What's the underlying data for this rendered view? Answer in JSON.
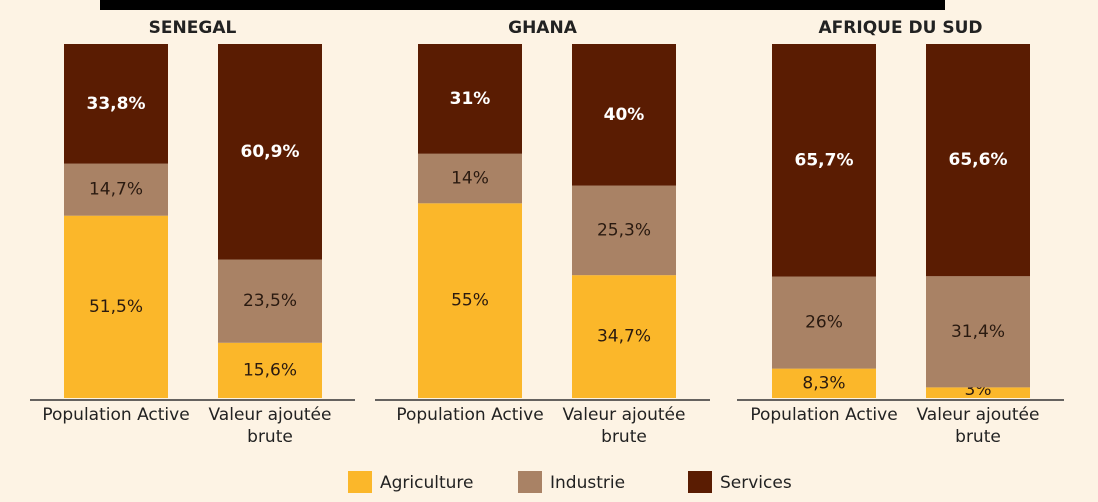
{
  "chart_data": {
    "type": "bar",
    "stacked": true,
    "ylim": [
      0,
      100
    ],
    "legend": [
      {
        "name": "Agriculture",
        "color": "#fbb72a"
      },
      {
        "name": "Industrie",
        "color": "#a98265"
      },
      {
        "name": "Services",
        "color": "#5a1c02"
      }
    ],
    "panels": [
      {
        "title": "SENEGAL",
        "categories": [
          "Population Active",
          "Valeur ajoutée brute"
        ],
        "series": [
          {
            "values": [
              51.5,
              15.6
            ],
            "value_labels": [
              "51,5%",
              "15,6%"
            ]
          },
          {
            "values": [
              14.7,
              23.5
            ],
            "value_labels": [
              "14,7%",
              "23,5%"
            ]
          },
          {
            "values": [
              33.8,
              60.9
            ],
            "value_labels": [
              "33,8%",
              "60,9%"
            ]
          }
        ]
      },
      {
        "title": "GHANA",
        "categories": [
          "Population Active",
          "Valeur ajoutée brute"
        ],
        "series": [
          {
            "values": [
              55,
              34.7
            ],
            "value_labels": [
              "55%",
              "34,7%"
            ]
          },
          {
            "values": [
              14,
              25.3
            ],
            "value_labels": [
              "14%",
              "25,3%"
            ]
          },
          {
            "values": [
              31,
              40
            ],
            "value_labels": [
              "31%",
              "40%"
            ]
          }
        ]
      },
      {
        "title": "AFRIQUE DU SUD",
        "categories": [
          "Population Active",
          "Valeur ajoutée brute"
        ],
        "series": [
          {
            "values": [
              8.3,
              3
            ],
            "value_labels": [
              "8,3%",
              "3%"
            ]
          },
          {
            "values": [
              26,
              31.4
            ],
            "value_labels": [
              "26%",
              "31,4%"
            ]
          },
          {
            "values": [
              65.7,
              65.6
            ],
            "value_labels": [
              "65,7%",
              "65,6%"
            ]
          }
        ]
      }
    ]
  }
}
